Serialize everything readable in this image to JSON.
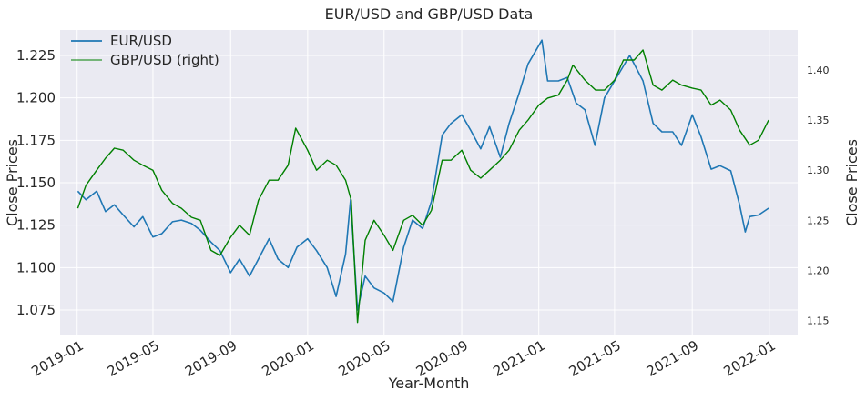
{
  "chart_data": {
    "type": "line",
    "title": "EUR/USD and GBP/USD Data",
    "xlabel": "Year-Month",
    "ylabel_left": "Close Prices",
    "ylabel_right": "Close Prices",
    "x_ticks": [
      "2019-01",
      "2019-05",
      "2019-09",
      "2020-01",
      "2020-05",
      "2020-09",
      "2021-01",
      "2021-05",
      "2021-09",
      "2022-01"
    ],
    "y_left": {
      "ylim": [
        1.06,
        1.24
      ],
      "ticks": [
        "1.075",
        "1.100",
        "1.125",
        "1.150",
        "1.175",
        "1.200",
        "1.225"
      ]
    },
    "y_right": {
      "ylim": [
        1.135,
        1.44
      ],
      "ticks": [
        "1.15",
        "1.20",
        "1.25",
        "1.30",
        "1.35",
        "1.40"
      ]
    },
    "grid": true,
    "legend": {
      "placement": "top-left"
    },
    "series": [
      {
        "name": "EUR/USD",
        "axis": "left",
        "color": "#1f77b4",
        "dates": [
          "2019-01-02",
          "2019-01-15",
          "2019-02-01",
          "2019-02-15",
          "2019-03-01",
          "2019-03-15",
          "2019-04-01",
          "2019-04-15",
          "2019-05-01",
          "2019-05-15",
          "2019-06-01",
          "2019-06-15",
          "2019-07-01",
          "2019-07-15",
          "2019-08-01",
          "2019-08-15",
          "2019-09-01",
          "2019-09-15",
          "2019-10-01",
          "2019-10-15",
          "2019-11-01",
          "2019-11-15",
          "2019-12-01",
          "2019-12-15",
          "2020-01-01",
          "2020-01-15",
          "2020-02-01",
          "2020-02-15",
          "2020-03-01",
          "2020-03-09",
          "2020-03-20",
          "2020-04-01",
          "2020-04-15",
          "2020-05-01",
          "2020-05-15",
          "2020-06-01",
          "2020-06-15",
          "2020-07-01",
          "2020-07-15",
          "2020-08-01",
          "2020-08-15",
          "2020-09-01",
          "2020-09-15",
          "2020-10-01",
          "2020-10-15",
          "2020-11-01",
          "2020-11-15",
          "2020-12-01",
          "2020-12-15",
          "2021-01-06",
          "2021-01-15",
          "2021-02-01",
          "2021-02-15",
          "2021-03-01",
          "2021-03-15",
          "2021-03-31",
          "2021-04-15",
          "2021-05-01",
          "2021-05-25",
          "2021-06-15",
          "2021-07-01",
          "2021-07-15",
          "2021-08-01",
          "2021-08-15",
          "2021-09-01",
          "2021-09-15",
          "2021-10-01",
          "2021-10-15",
          "2021-11-01",
          "2021-11-15",
          "2021-11-24",
          "2021-12-01",
          "2021-12-15",
          "2021-12-31"
        ],
        "values": [
          1.145,
          1.14,
          1.145,
          1.133,
          1.137,
          1.131,
          1.124,
          1.13,
          1.118,
          1.12,
          1.127,
          1.128,
          1.126,
          1.122,
          1.115,
          1.11,
          1.097,
          1.105,
          1.095,
          1.105,
          1.117,
          1.105,
          1.1,
          1.112,
          1.117,
          1.11,
          1.1,
          1.083,
          1.108,
          1.14,
          1.075,
          1.095,
          1.088,
          1.085,
          1.08,
          1.112,
          1.128,
          1.123,
          1.139,
          1.178,
          1.185,
          1.19,
          1.181,
          1.17,
          1.183,
          1.165,
          1.185,
          1.203,
          1.22,
          1.234,
          1.21,
          1.21,
          1.212,
          1.197,
          1.193,
          1.172,
          1.2,
          1.21,
          1.225,
          1.21,
          1.185,
          1.18,
          1.18,
          1.172,
          1.19,
          1.177,
          1.158,
          1.16,
          1.157,
          1.137,
          1.121,
          1.13,
          1.131,
          1.135
        ]
      },
      {
        "name": "GBP/USD (right)",
        "axis": "right",
        "color": "#008000",
        "dates": [
          "2019-01-02",
          "2019-01-15",
          "2019-02-01",
          "2019-02-15",
          "2019-03-01",
          "2019-03-15",
          "2019-04-01",
          "2019-04-15",
          "2019-05-01",
          "2019-05-15",
          "2019-06-01",
          "2019-06-15",
          "2019-07-01",
          "2019-07-15",
          "2019-08-01",
          "2019-08-15",
          "2019-09-01",
          "2019-09-15",
          "2019-10-01",
          "2019-10-15",
          "2019-11-01",
          "2019-11-15",
          "2019-12-01",
          "2019-12-13",
          "2020-01-01",
          "2020-01-15",
          "2020-02-01",
          "2020-02-15",
          "2020-03-01",
          "2020-03-10",
          "2020-03-20",
          "2020-04-01",
          "2020-04-15",
          "2020-05-01",
          "2020-05-15",
          "2020-06-01",
          "2020-06-15",
          "2020-07-01",
          "2020-07-15",
          "2020-08-01",
          "2020-08-15",
          "2020-09-01",
          "2020-09-15",
          "2020-10-01",
          "2020-10-15",
          "2020-11-01",
          "2020-11-15",
          "2020-12-01",
          "2020-12-15",
          "2021-01-01",
          "2021-01-15",
          "2021-02-01",
          "2021-02-15",
          "2021-02-24",
          "2021-03-15",
          "2021-04-01",
          "2021-04-15",
          "2021-05-01",
          "2021-05-15",
          "2021-06-01",
          "2021-06-15",
          "2021-07-01",
          "2021-07-15",
          "2021-08-01",
          "2021-08-15",
          "2021-09-01",
          "2021-09-15",
          "2021-10-01",
          "2021-10-15",
          "2021-11-01",
          "2021-11-15",
          "2021-12-01",
          "2021-12-15",
          "2021-12-31"
        ],
        "values": [
          1.262,
          1.285,
          1.3,
          1.312,
          1.322,
          1.32,
          1.31,
          1.305,
          1.3,
          1.28,
          1.267,
          1.262,
          1.253,
          1.25,
          1.22,
          1.215,
          1.233,
          1.245,
          1.235,
          1.27,
          1.29,
          1.29,
          1.305,
          1.342,
          1.32,
          1.3,
          1.31,
          1.305,
          1.29,
          1.27,
          1.148,
          1.23,
          1.25,
          1.235,
          1.22,
          1.25,
          1.255,
          1.245,
          1.26,
          1.31,
          1.31,
          1.32,
          1.3,
          1.292,
          1.3,
          1.31,
          1.32,
          1.34,
          1.35,
          1.365,
          1.372,
          1.375,
          1.39,
          1.405,
          1.39,
          1.38,
          1.38,
          1.39,
          1.41,
          1.41,
          1.42,
          1.385,
          1.38,
          1.39,
          1.385,
          1.382,
          1.38,
          1.365,
          1.37,
          1.36,
          1.34,
          1.325,
          1.33,
          1.35
        ]
      }
    ]
  }
}
